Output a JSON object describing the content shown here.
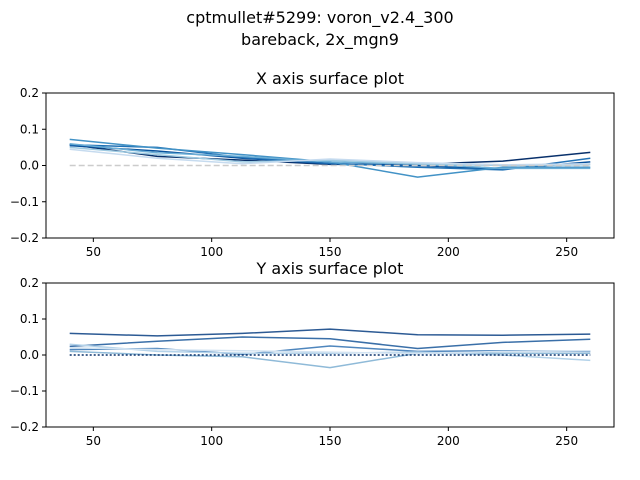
{
  "figure": {
    "suptitle_line1": "cptmullet#5299: voron_v2.4_300",
    "suptitle_line2": "bareback, 2x_mgn9"
  },
  "chart_data": [
    {
      "type": "line",
      "title": "X axis surface plot",
      "xlim": [
        30,
        270
      ],
      "ylim": [
        -0.2,
        0.2
      ],
      "xticks": [
        50,
        100,
        150,
        200,
        250
      ],
      "yticks": [
        -0.2,
        -0.1,
        0.0,
        0.1,
        0.2
      ],
      "grid": false,
      "x": [
        40,
        77,
        113,
        150,
        187,
        223,
        260
      ],
      "series": [
        {
          "color": "#08306b",
          "style": "solid",
          "values": [
            0.058,
            0.025,
            0.015,
            0.003,
            0.003,
            0.012,
            0.036
          ]
        },
        {
          "color": "#08519c",
          "style": "solid",
          "values": [
            0.055,
            0.04,
            0.02,
            0.005,
            0.0,
            -0.01,
            0.01
          ]
        },
        {
          "color": "#2171b5",
          "style": "solid",
          "values": [
            0.057,
            0.05,
            0.022,
            0.006,
            -0.005,
            -0.012,
            0.02
          ]
        },
        {
          "color": "#4292c6",
          "style": "solid",
          "values": [
            0.072,
            0.048,
            0.03,
            0.01,
            -0.032,
            -0.005,
            -0.005
          ]
        },
        {
          "color": "#6baed6",
          "style": "solid",
          "values": [
            0.06,
            0.035,
            0.025,
            0.01,
            0.004,
            -0.008,
            -0.008
          ]
        },
        {
          "color": "#9ecae1",
          "style": "solid",
          "values": [
            0.05,
            0.03,
            0.01,
            0.015,
            0.005,
            0.0,
            0.002
          ]
        },
        {
          "color": "#c6dbef",
          "style": "solid",
          "values": [
            0.045,
            0.02,
            0.005,
            0.018,
            0.008,
            0.002,
            0.005
          ]
        },
        {
          "color": "#cccccc",
          "style": "dashed",
          "values": [
            0.0,
            0.0,
            0.0,
            0.0,
            0.0,
            0.0,
            0.0
          ]
        }
      ]
    },
    {
      "type": "line",
      "title": "Y axis surface plot",
      "xlim": [
        30,
        270
      ],
      "ylim": [
        -0.2,
        0.2
      ],
      "xticks": [
        50,
        100,
        150,
        200,
        250
      ],
      "yticks": [
        -0.2,
        -0.1,
        0.0,
        0.1,
        0.2
      ],
      "grid": false,
      "x": [
        40,
        77,
        113,
        150,
        187,
        223,
        260
      ],
      "series": [
        {
          "color": "#2c5a94",
          "style": "solid",
          "values": [
            0.06,
            0.053,
            0.06,
            0.072,
            0.056,
            0.055,
            0.058
          ]
        },
        {
          "color": "#3a6fa8",
          "style": "solid",
          "values": [
            0.024,
            0.038,
            0.05,
            0.045,
            0.018,
            0.035,
            0.044
          ]
        },
        {
          "color": "#4f86bd",
          "style": "solid",
          "values": [
            0.015,
            0.018,
            0.002,
            0.025,
            0.01,
            0.012,
            0.01
          ]
        },
        {
          "color": "#8fbad8",
          "style": "solid",
          "values": [
            0.01,
            0.0,
            -0.005,
            -0.035,
            0.005,
            0.005,
            0.005
          ]
        },
        {
          "color": "#b3d2e9",
          "style": "solid",
          "values": [
            0.03,
            0.01,
            0.005,
            0.005,
            0.008,
            0.0,
            -0.015
          ]
        },
        {
          "color": "#d4e4f2",
          "style": "solid",
          "values": [
            0.02,
            0.015,
            0.012,
            0.008,
            0.004,
            0.01,
            0.012
          ]
        },
        {
          "color": "#08306b",
          "style": "dotted",
          "values": [
            0.0,
            0.0,
            0.0,
            0.0,
            0.0,
            0.0,
            0.0
          ]
        }
      ]
    }
  ]
}
